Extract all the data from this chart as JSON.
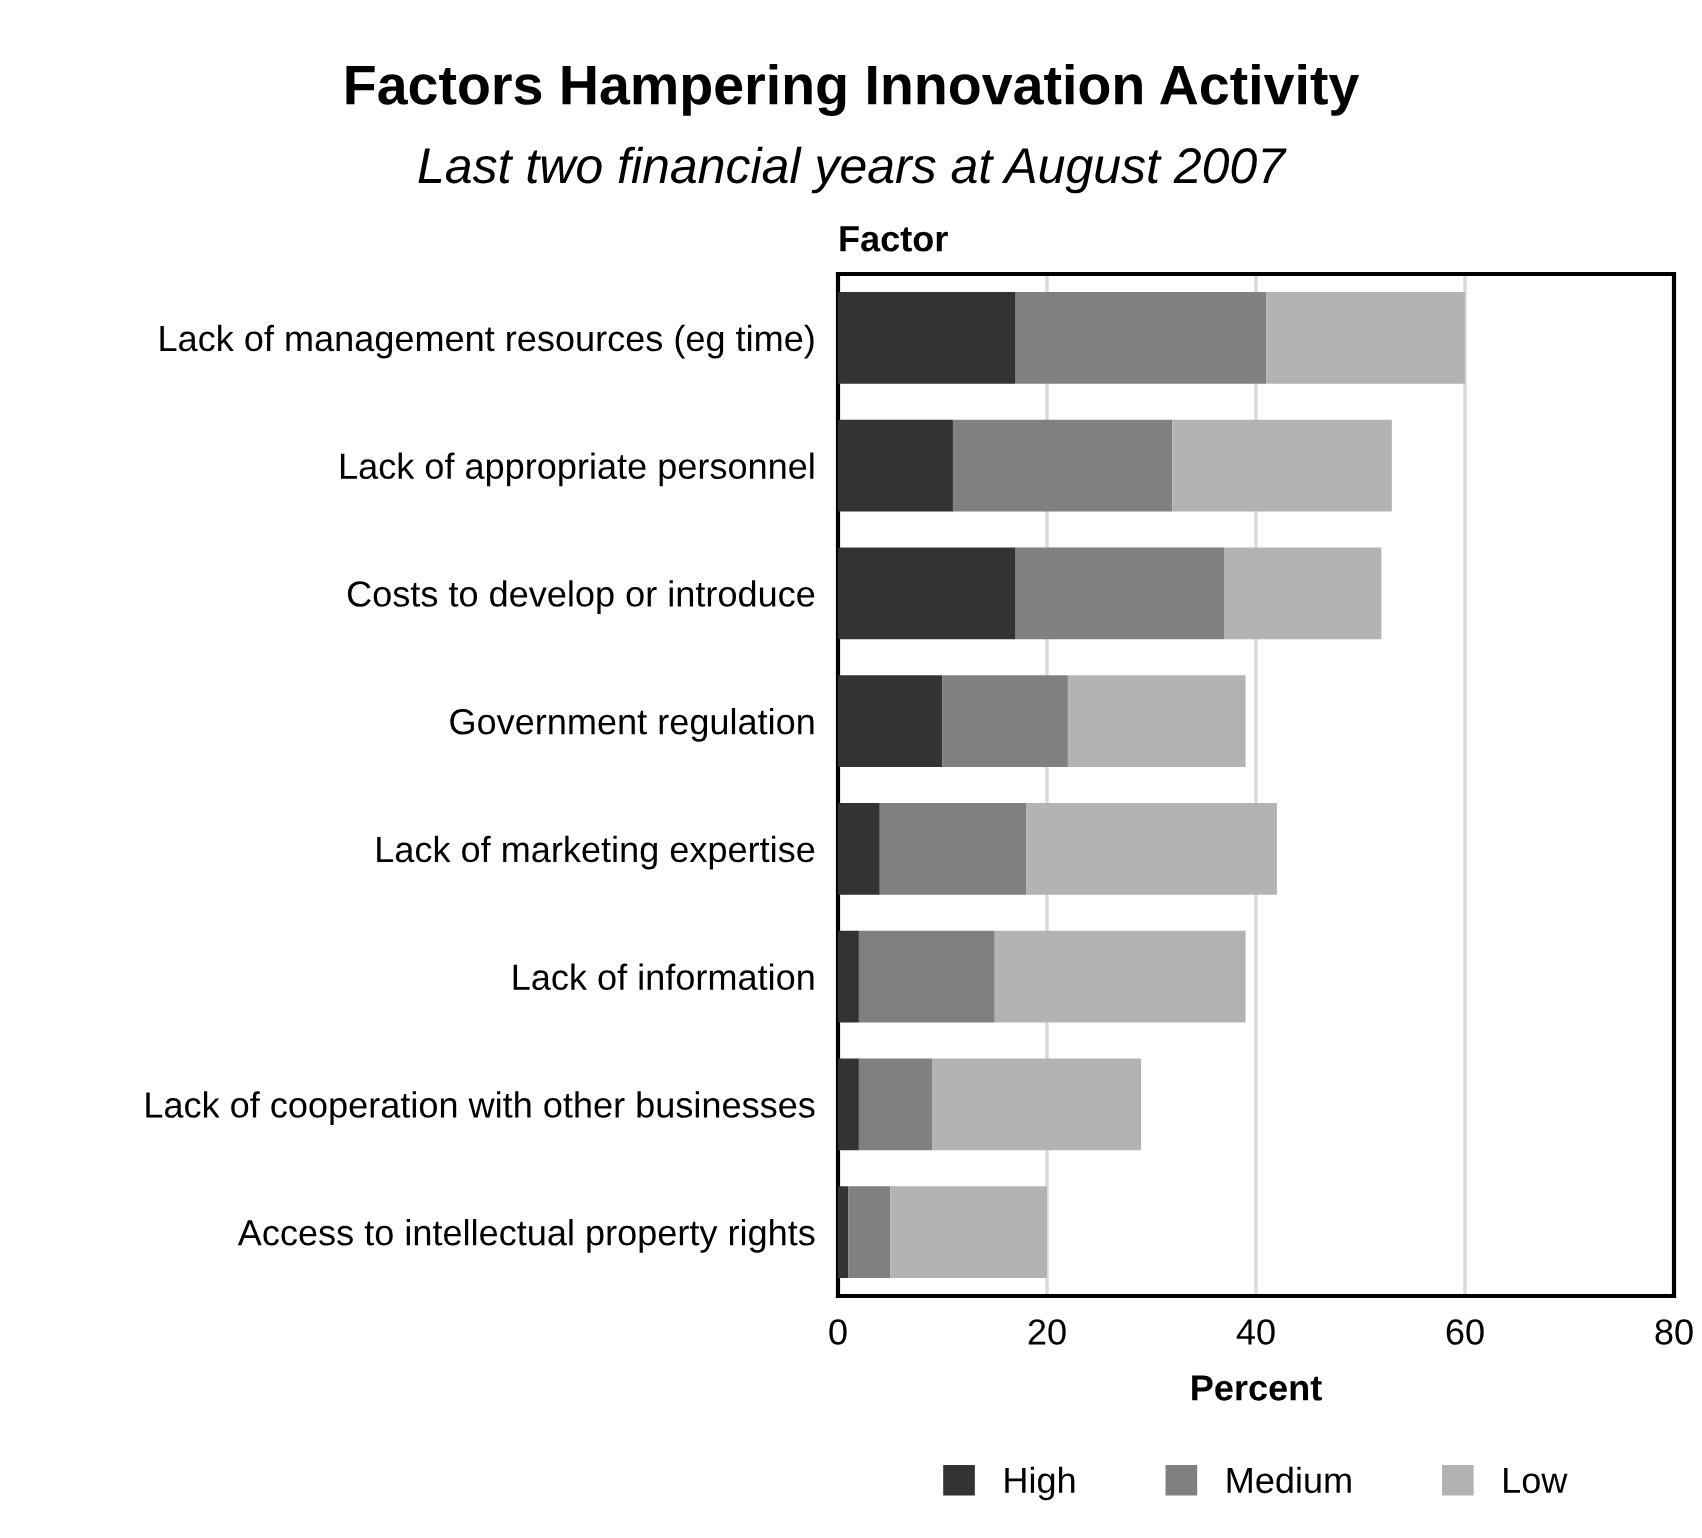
{
  "chart_data": {
    "type": "bar",
    "orientation": "horizontal",
    "stacked": true,
    "title": "Factors Hampering Innovation Activity",
    "subtitle": "Last two financial years at August 2007",
    "xlabel": "Percent",
    "ylabel": "Factor",
    "categories": [
      "Lack of management resources (eg time)",
      "Lack of appropriate personnel",
      "Costs to develop or introduce",
      "Government regulation",
      "Lack of marketing expertise",
      "Lack of information",
      "Lack of cooperation with other businesses",
      "Access to intellectual property rights"
    ],
    "series": [
      {
        "name": "High",
        "color": "#333333",
        "values": [
          17,
          11,
          17,
          10,
          4,
          2,
          2,
          1
        ]
      },
      {
        "name": "Medium",
        "color": "#808080",
        "values": [
          24,
          21,
          20,
          12,
          14,
          13,
          7,
          4
        ]
      },
      {
        "name": "Low",
        "color": "#b3b3b3",
        "values": [
          19,
          21,
          15,
          17,
          24,
          24,
          20,
          15
        ]
      }
    ],
    "xlim": [
      0,
      80
    ],
    "xticks": [
      0,
      20,
      40,
      60,
      80
    ],
    "grid": "x",
    "legend": "bottom"
  }
}
